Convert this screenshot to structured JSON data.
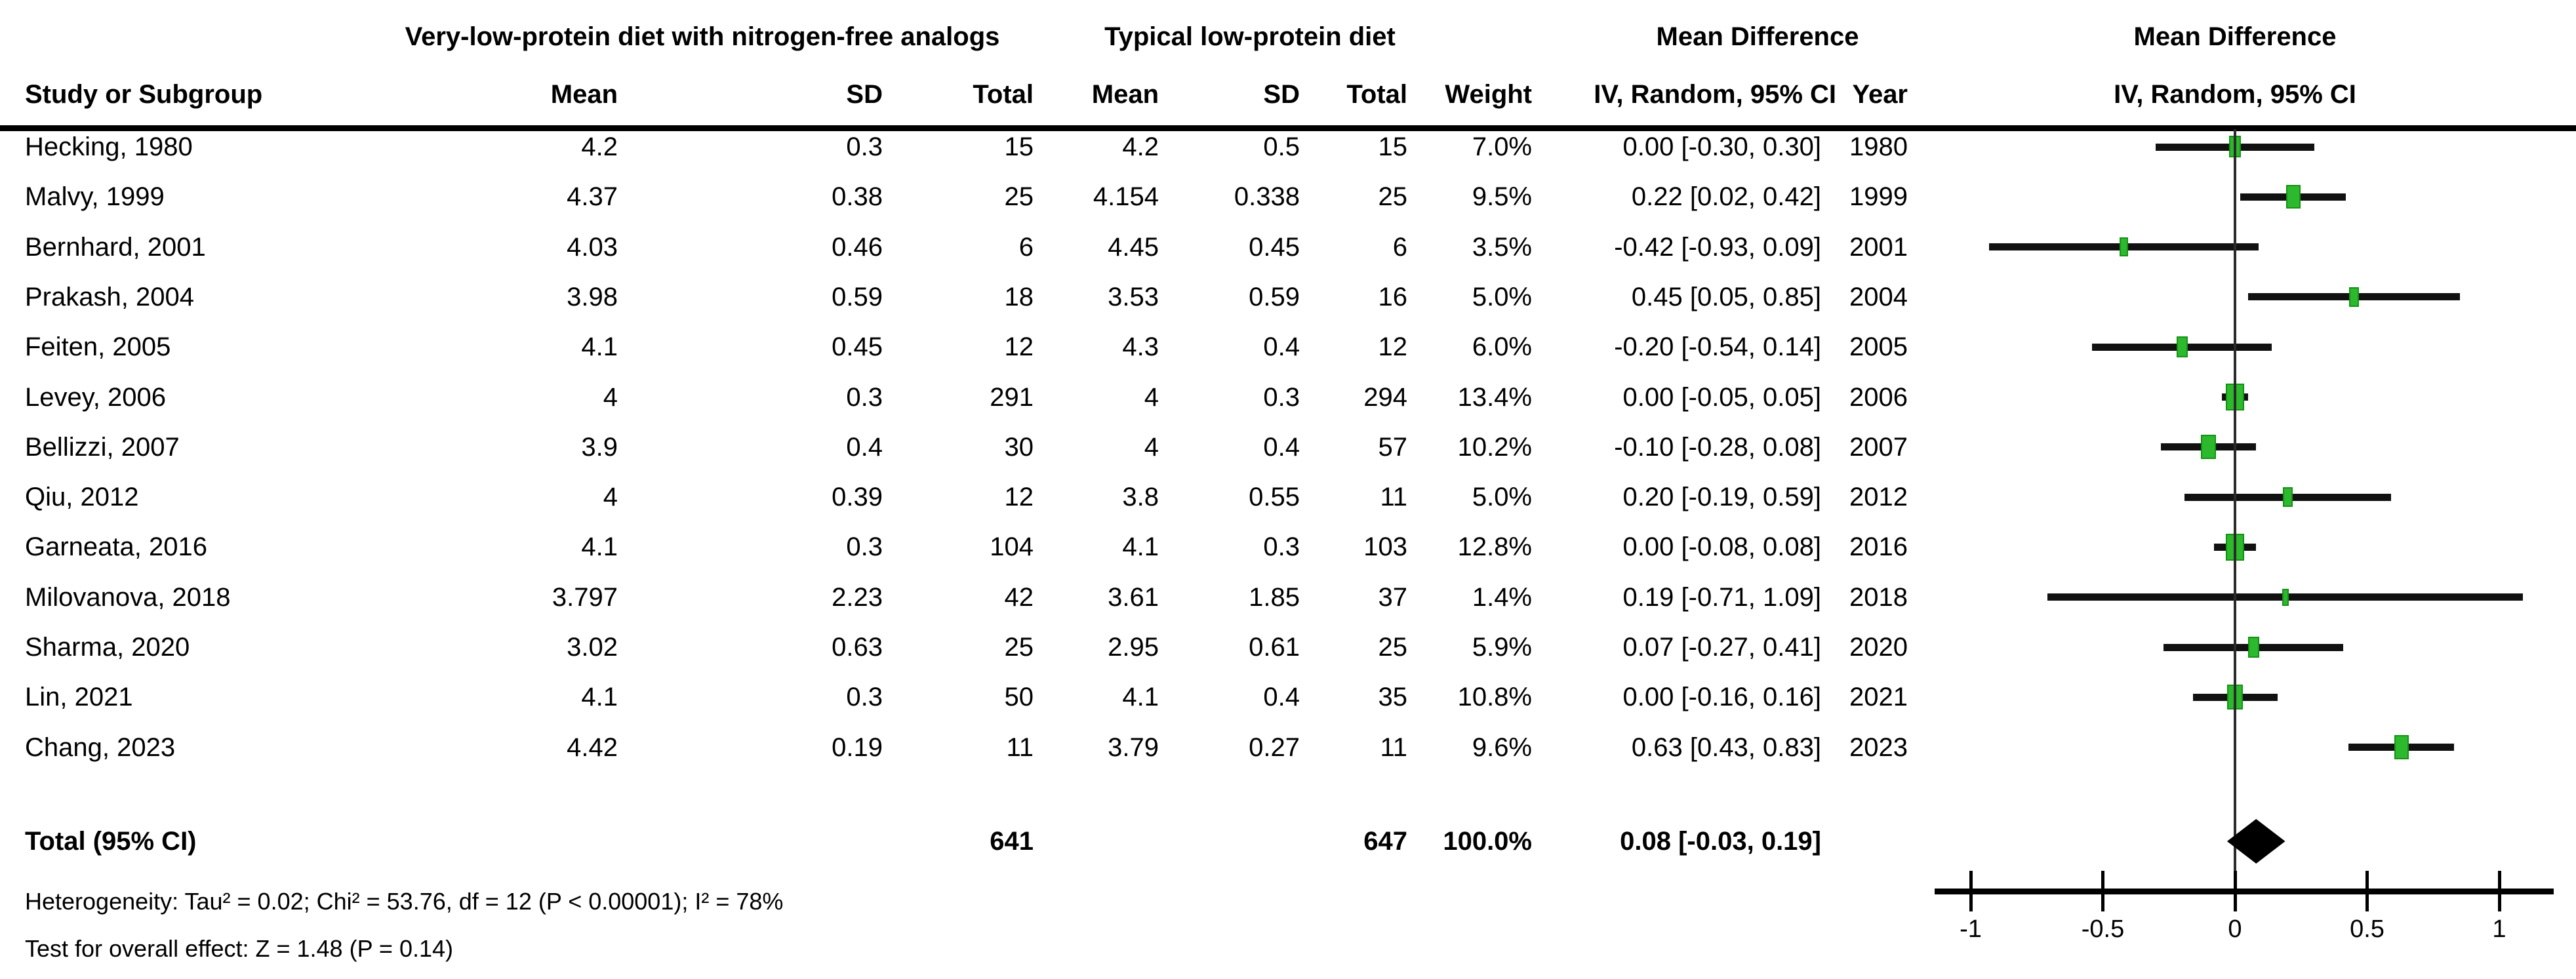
{
  "labels": {
    "study_col": "Study or Subgroup",
    "group1": "Very-low-protein diet with nitrogen-free analogs",
    "group2": "Typical low-protein diet",
    "mean": "Mean",
    "sd": "SD",
    "total": "Total",
    "weight": "Weight",
    "md_col_title": "Mean Difference",
    "ci_col_subtitle": "IV, Random, 95% CI",
    "year_col": "Year",
    "plot_title": "Mean Difference",
    "plot_subtitle": "IV, Random, 95% CI"
  },
  "footer": {
    "heterogeneity": "Heterogeneity: Tau² = 0.02; Chi² = 53.76, df = 12 (P < 0.00001); I² = 78%",
    "overall_effect": "Test for overall effect: Z = 1.48 (P = 0.14)"
  },
  "chart_data": {
    "type": "scatter",
    "variant": "forest-plot",
    "title": "Mean Difference",
    "subtitle": "IV, Random, 95% CI",
    "effect_measure": "Mean Difference, IV, Random, 95% CI",
    "x_axis": {
      "ticks": [
        -1,
        -0.5,
        0,
        0.5,
        1
      ],
      "tick_labels": [
        "-1",
        "-0.5",
        "0",
        "0.5",
        "1"
      ]
    },
    "colors": {
      "marker": "#2db92d",
      "marker_border": "#159115",
      "ci_line": "#111111",
      "diamond": "#000000"
    },
    "studies": [
      {
        "name": "Hecking, 1980",
        "mean1": "4.2",
        "sd1": "0.3",
        "n1": "15",
        "mean2": "4.2",
        "sd2": "0.5",
        "n2": "15",
        "weight": "7.0%",
        "weight_value": 7.0,
        "ci_text": "0.00 [-0.30, 0.30]",
        "year": "1980",
        "md": 0.0,
        "lo": -0.3,
        "hi": 0.3
      },
      {
        "name": "Malvy, 1999",
        "mean1": "4.37",
        "sd1": "0.38",
        "n1": "25",
        "mean2": "4.154",
        "sd2": "0.338",
        "n2": "25",
        "weight": "9.5%",
        "weight_value": 9.5,
        "ci_text": "0.22 [0.02, 0.42]",
        "year": "1999",
        "md": 0.22,
        "lo": 0.02,
        "hi": 0.42
      },
      {
        "name": "Bernhard, 2001",
        "mean1": "4.03",
        "sd1": "0.46",
        "n1": "6",
        "mean2": "4.45",
        "sd2": "0.45",
        "n2": "6",
        "weight": "3.5%",
        "weight_value": 3.5,
        "ci_text": "-0.42 [-0.93, 0.09]",
        "year": "2001",
        "md": -0.42,
        "lo": -0.93,
        "hi": 0.09
      },
      {
        "name": "Prakash, 2004",
        "mean1": "3.98",
        "sd1": "0.59",
        "n1": "18",
        "mean2": "3.53",
        "sd2": "0.59",
        "n2": "16",
        "weight": "5.0%",
        "weight_value": 5.0,
        "ci_text": "0.45 [0.05, 0.85]",
        "year": "2004",
        "md": 0.45,
        "lo": 0.05,
        "hi": 0.85
      },
      {
        "name": "Feiten, 2005",
        "mean1": "4.1",
        "sd1": "0.45",
        "n1": "12",
        "mean2": "4.3",
        "sd2": "0.4",
        "n2": "12",
        "weight": "6.0%",
        "weight_value": 6.0,
        "ci_text": "-0.20 [-0.54, 0.14]",
        "year": "2005",
        "md": -0.2,
        "lo": -0.54,
        "hi": 0.14
      },
      {
        "name": "Levey, 2006",
        "mean1": "4",
        "sd1": "0.3",
        "n1": "291",
        "mean2": "4",
        "sd2": "0.3",
        "n2": "294",
        "weight": "13.4%",
        "weight_value": 13.4,
        "ci_text": "0.00 [-0.05, 0.05]",
        "year": "2006",
        "md": 0.0,
        "lo": -0.05,
        "hi": 0.05
      },
      {
        "name": "Bellizzi, 2007",
        "mean1": "3.9",
        "sd1": "0.4",
        "n1": "30",
        "mean2": "4",
        "sd2": "0.4",
        "n2": "57",
        "weight": "10.2%",
        "weight_value": 10.2,
        "ci_text": "-0.10 [-0.28, 0.08]",
        "year": "2007",
        "md": -0.1,
        "lo": -0.28,
        "hi": 0.08
      },
      {
        "name": "Qiu, 2012",
        "mean1": "4",
        "sd1": "0.39",
        "n1": "12",
        "mean2": "3.8",
        "sd2": "0.55",
        "n2": "11",
        "weight": "5.0%",
        "weight_value": 5.0,
        "ci_text": "0.20 [-0.19, 0.59]",
        "year": "2012",
        "md": 0.2,
        "lo": -0.19,
        "hi": 0.59
      },
      {
        "name": "Garneata, 2016",
        "mean1": "4.1",
        "sd1": "0.3",
        "n1": "104",
        "mean2": "4.1",
        "sd2": "0.3",
        "n2": "103",
        "weight": "12.8%",
        "weight_value": 12.8,
        "ci_text": "0.00 [-0.08, 0.08]",
        "year": "2016",
        "md": 0.0,
        "lo": -0.08,
        "hi": 0.08
      },
      {
        "name": "Milovanova, 2018",
        "mean1": "3.797",
        "sd1": "2.23",
        "n1": "42",
        "mean2": "3.61",
        "sd2": "1.85",
        "n2": "37",
        "weight": "1.4%",
        "weight_value": 1.4,
        "ci_text": "0.19 [-0.71, 1.09]",
        "year": "2018",
        "md": 0.19,
        "lo": -0.71,
        "hi": 1.09
      },
      {
        "name": "Sharma, 2020",
        "mean1": "3.02",
        "sd1": "0.63",
        "n1": "25",
        "mean2": "2.95",
        "sd2": "0.61",
        "n2": "25",
        "weight": "5.9%",
        "weight_value": 5.9,
        "ci_text": "0.07 [-0.27, 0.41]",
        "year": "2020",
        "md": 0.07,
        "lo": -0.27,
        "hi": 0.41
      },
      {
        "name": "Lin, 2021",
        "mean1": "4.1",
        "sd1": "0.3",
        "n1": "50",
        "mean2": "4.1",
        "sd2": "0.4",
        "n2": "35",
        "weight": "10.8%",
        "weight_value": 10.8,
        "ci_text": "0.00 [-0.16, 0.16]",
        "year": "2021",
        "md": 0.0,
        "lo": -0.16,
        "hi": 0.16
      },
      {
        "name": "Chang, 2023",
        "mean1": "4.42",
        "sd1": "0.19",
        "n1": "11",
        "mean2": "3.79",
        "sd2": "0.27",
        "n2": "11",
        "weight": "9.6%",
        "weight_value": 9.6,
        "ci_text": "0.63 [0.43, 0.83]",
        "year": "2023",
        "md": 0.63,
        "lo": 0.43,
        "hi": 0.83
      }
    ],
    "total": {
      "label": "Total (95% CI)",
      "n1": "641",
      "n2": "647",
      "weight": "100.0%",
      "ci_text": "0.08 [-0.03, 0.19]",
      "md": 0.08,
      "lo": -0.03,
      "hi": 0.19
    }
  }
}
